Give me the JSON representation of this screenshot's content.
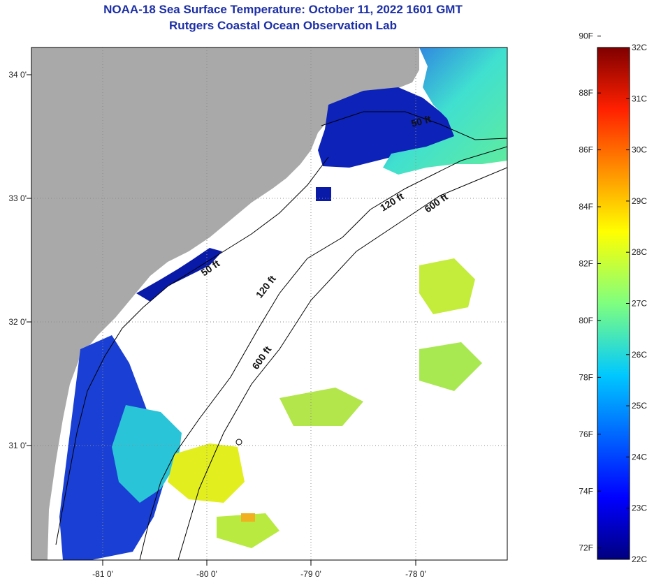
{
  "title": "NOAA-18 Sea Surface Temperature:  October 11, 2022 1601 GMT",
  "subtitle": "Rutgers Coastal Ocean Observation Lab",
  "lat_labels": [
    "34 0'",
    "33 0'",
    "32 0'",
    "31 0'"
  ],
  "lon_labels": [
    "-81 0'",
    "-80 0'",
    "-79 0'",
    "-78 0'"
  ],
  "contours": [
    {
      "id": "c50a",
      "text": "50 ft"
    },
    {
      "id": "c50b",
      "text": "50 ft"
    },
    {
      "id": "c120a",
      "text": "120 ft"
    },
    {
      "id": "c120b",
      "text": "120 ft"
    },
    {
      "id": "c600a",
      "text": "600 ft"
    },
    {
      "id": "c600b",
      "text": "600 ft"
    }
  ],
  "colorbar": {
    "f_labels": [
      "90F",
      "88F",
      "86F",
      "84F",
      "82F",
      "80F",
      "78F",
      "76F",
      "74F",
      "72F"
    ],
    "c_labels": [
      "32C",
      "31C",
      "30C",
      "29C",
      "28C",
      "27C",
      "26C",
      "25C",
      "24C",
      "23C",
      "22C"
    ]
  },
  "colors": {
    "title": "#1c2fa6",
    "land": "#a9a9a9",
    "no_data": "#ffffff",
    "sst_cold": "#0a1aa8",
    "sst_mid": "#29d8e0",
    "sst_warm": "#e6f020"
  }
}
